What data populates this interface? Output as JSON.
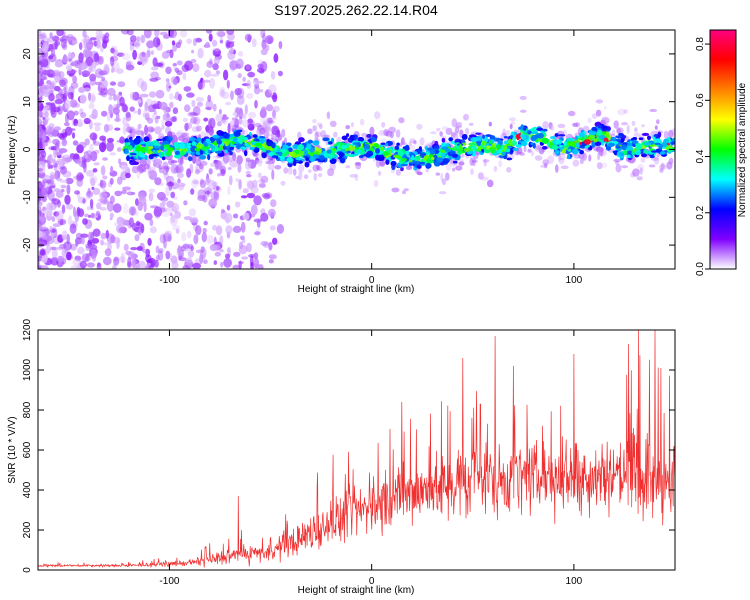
{
  "title": "S197.2025.262.22.14.R04",
  "chart_data": [
    {
      "type": "heatmap",
      "name": "spectrogram",
      "xlabel": "Height of straight line (km)",
      "ylabel": "Frequency (Hz)",
      "xlim": [
        -165,
        150
      ],
      "ylim": [
        -25,
        25
      ],
      "xticks": [
        -100,
        0,
        100
      ],
      "yticks": [
        -20,
        -10,
        0,
        10,
        20
      ],
      "xtick_labels": [
        "-100",
        "0",
        "100"
      ],
      "ytick_labels": [
        "-20",
        "-10",
        "0",
        "10",
        "20"
      ],
      "band_center_hz": [
        {
          "x": -120,
          "y": 0
        },
        {
          "x": -100,
          "y": 0
        },
        {
          "x": -80,
          "y": 0.5
        },
        {
          "x": -65,
          "y": 2
        },
        {
          "x": -55,
          "y": 1
        },
        {
          "x": -40,
          "y": -1
        },
        {
          "x": -20,
          "y": 0
        },
        {
          "x": 0,
          "y": 0.5
        },
        {
          "x": 10,
          "y": -1
        },
        {
          "x": 20,
          "y": -2
        },
        {
          "x": 30,
          "y": -1.5
        },
        {
          "x": 40,
          "y": 0
        },
        {
          "x": 55,
          "y": 1
        },
        {
          "x": 65,
          "y": 0
        },
        {
          "x": 75,
          "y": 3
        },
        {
          "x": 85,
          "y": 2.5
        },
        {
          "x": 95,
          "y": 0
        },
        {
          "x": 105,
          "y": 2
        },
        {
          "x": 115,
          "y": 3
        },
        {
          "x": 125,
          "y": 0
        },
        {
          "x": 140,
          "y": 1
        },
        {
          "x": 150,
          "y": 1
        }
      ],
      "colorbar": {
        "label": "Normalized spectral amplitude",
        "range": [
          0.0,
          0.85
        ],
        "ticks": [
          0.0,
          0.2,
          0.4,
          0.6,
          0.8
        ],
        "tick_labels": [
          "0.0",
          "0.2",
          "0.4",
          "0.6",
          "0.8"
        ],
        "colors": [
          "#ffffff",
          "#8000ff",
          "#0000ff",
          "#00ffff",
          "#00ff00",
          "#ffff00",
          "#ff8000",
          "#ff0000",
          "#ff0080"
        ]
      }
    },
    {
      "type": "line",
      "name": "snr",
      "xlabel": "Height of straight line (km)",
      "ylabel": "SNR (10 * V/V)",
      "xlim": [
        -165,
        150
      ],
      "ylim": [
        0,
        1200
      ],
      "xticks": [
        -100,
        0,
        100
      ],
      "yticks": [
        0,
        200,
        400,
        600,
        800,
        1000,
        1200
      ],
      "xtick_labels": [
        "-100",
        "0",
        "100"
      ],
      "ytick_labels": [
        "0",
        "200",
        "400",
        "600",
        "800",
        "1000",
        "1200"
      ],
      "line_color": "#f03030",
      "envelope": [
        {
          "x": -165,
          "mean": 22,
          "spread": 8
        },
        {
          "x": -120,
          "mean": 22,
          "spread": 8
        },
        {
          "x": -90,
          "mean": 35,
          "spread": 20
        },
        {
          "x": -70,
          "mean": 70,
          "spread": 60
        },
        {
          "x": -50,
          "mean": 90,
          "spread": 60
        },
        {
          "x": -35,
          "mean": 160,
          "spread": 110
        },
        {
          "x": -20,
          "mean": 240,
          "spread": 150
        },
        {
          "x": 0,
          "mean": 320,
          "spread": 180
        },
        {
          "x": 20,
          "mean": 380,
          "spread": 200
        },
        {
          "x": 40,
          "mean": 430,
          "spread": 230
        },
        {
          "x": 60,
          "mean": 460,
          "spread": 260
        },
        {
          "x": 80,
          "mean": 460,
          "spread": 240
        },
        {
          "x": 100,
          "mean": 470,
          "spread": 240
        },
        {
          "x": 120,
          "mean": 480,
          "spread": 260
        },
        {
          "x": 135,
          "mean": 470,
          "spread": 300
        },
        {
          "x": 150,
          "mean": 420,
          "spread": 260
        }
      ],
      "peaks": [
        {
          "x": -66,
          "y": 370
        },
        {
          "x": 15,
          "y": 840
        },
        {
          "x": 45,
          "y": 1060
        },
        {
          "x": 61,
          "y": 1170
        },
        {
          "x": 70,
          "y": 1020
        },
        {
          "x": 100,
          "y": 1080
        },
        {
          "x": 127,
          "y": 1130
        },
        {
          "x": 132,
          "y": 1200
        },
        {
          "x": 140,
          "y": 1200
        },
        {
          "x": 143,
          "y": 1010
        }
      ]
    }
  ]
}
